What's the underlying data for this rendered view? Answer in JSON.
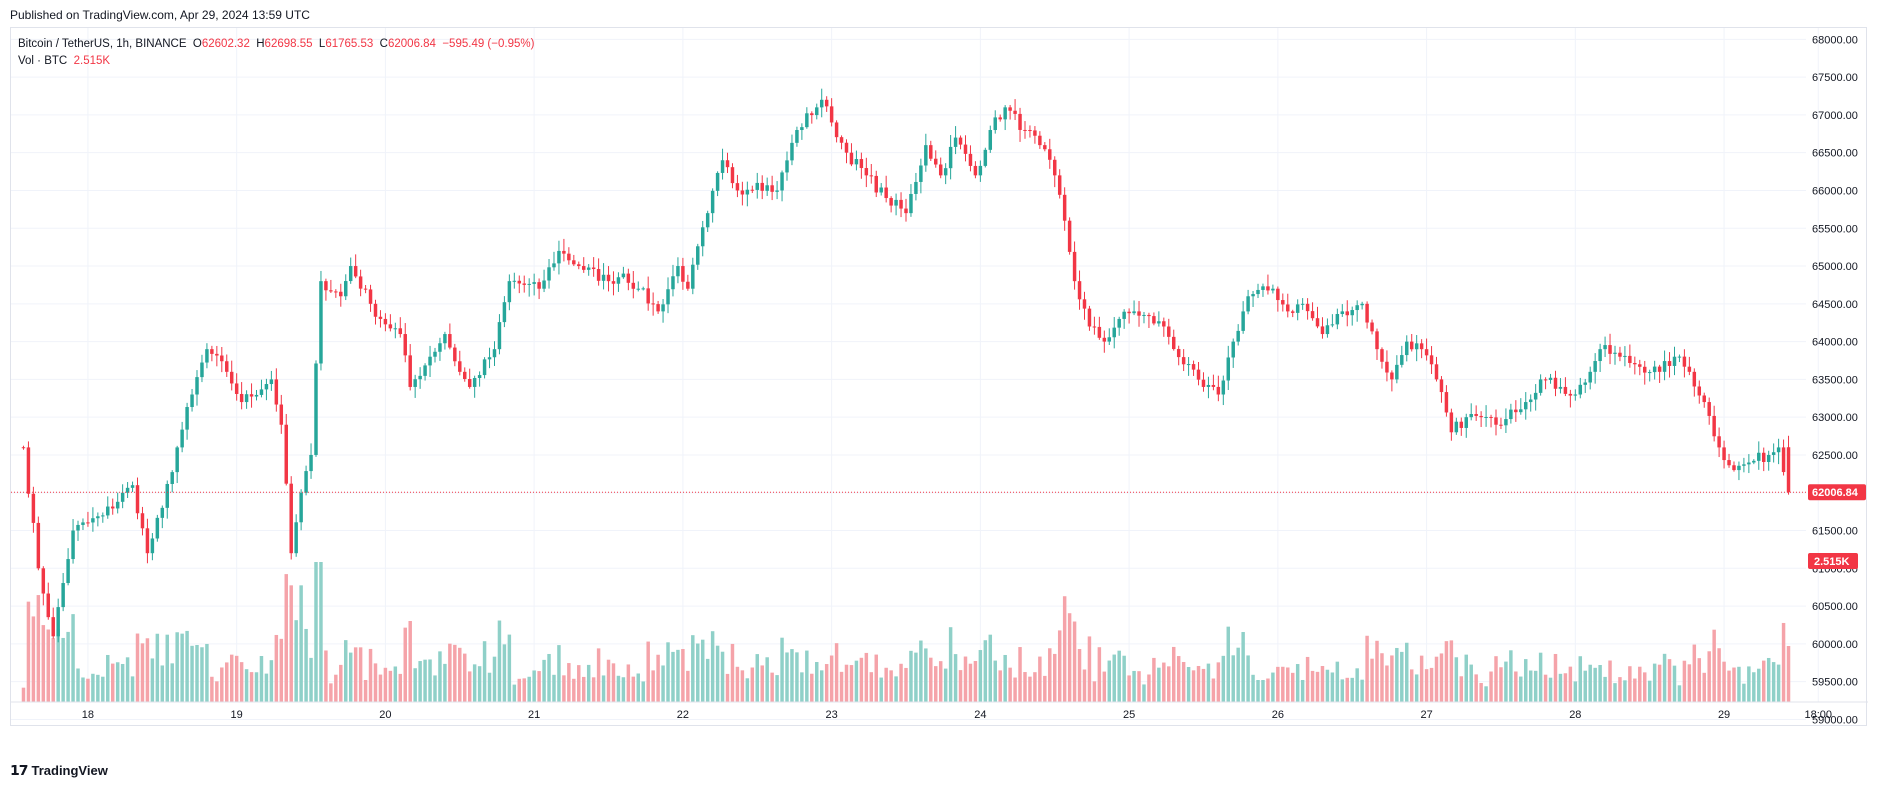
{
  "published": "Published on TradingView.com, Apr 29, 2024 13:59 UTC",
  "legend": {
    "symbol": "Bitcoin / TetherUS, 1h, BINANCE",
    "o_label": "O",
    "o": "62602.32",
    "h_label": "H",
    "h": "62698.55",
    "l_label": "L",
    "l": "61765.53",
    "c_label": "C",
    "c": "62006.84",
    "change": "−595.49 (−0.95%)",
    "vol_label": "Vol · BTC",
    "vol": "2.515K"
  },
  "footer": {
    "brand": "TradingView"
  },
  "colors": {
    "up": "#26a69a",
    "down": "#f23645",
    "vol_up": "#8fd0c8",
    "vol_down": "#f5a3a9",
    "grid": "#f0f3fa"
  },
  "chart_data": {
    "type": "candlestick",
    "title": "Bitcoin / TetherUS, 1h, BINANCE",
    "x_ticks": [
      "18",
      "19",
      "20",
      "21",
      "22",
      "23",
      "24",
      "25",
      "26",
      "27",
      "28",
      "29",
      "18:00"
    ],
    "y_ticks": [
      "68000.00",
      "67500.00",
      "67000.00",
      "66500.00",
      "66000.00",
      "65500.00",
      "65000.00",
      "64500.00",
      "64000.00",
      "63500.00",
      "63000.00",
      "62500.00",
      "62000.00",
      "61500.00",
      "61000.00",
      "60500.00",
      "60000.00",
      "59500.00",
      "59000.00"
    ],
    "ylim": [
      58900,
      68150
    ],
    "last_price": "62006.84",
    "last_volume": "2.515K",
    "anchors": [
      [
        0,
        62600
      ],
      [
        3,
        61000
      ],
      [
        6,
        60100
      ],
      [
        10,
        61500
      ],
      [
        16,
        61700
      ],
      [
        22,
        62100
      ],
      [
        25,
        61200
      ],
      [
        28,
        61800
      ],
      [
        31,
        62600
      ],
      [
        34,
        63300
      ],
      [
        37,
        63900
      ],
      [
        41,
        63600
      ],
      [
        44,
        63200
      ],
      [
        50,
        63500
      ],
      [
        52,
        62900
      ],
      [
        54,
        61200
      ],
      [
        56,
        62000
      ],
      [
        58,
        62500
      ],
      [
        60,
        64800
      ],
      [
        64,
        64600
      ],
      [
        66,
        65000
      ],
      [
        70,
        64500
      ],
      [
        72,
        64300
      ],
      [
        76,
        64100
      ],
      [
        78,
        63400
      ],
      [
        82,
        63800
      ],
      [
        85,
        64100
      ],
      [
        88,
        63600
      ],
      [
        90,
        63400
      ],
      [
        95,
        63900
      ],
      [
        98,
        64800
      ],
      [
        104,
        64700
      ],
      [
        108,
        65200
      ],
      [
        112,
        65000
      ],
      [
        118,
        64800
      ],
      [
        121,
        64900
      ],
      [
        124,
        64700
      ],
      [
        128,
        64400
      ],
      [
        132,
        65000
      ],
      [
        134,
        64700
      ],
      [
        138,
        65700
      ],
      [
        141,
        66400
      ],
      [
        144,
        66000
      ],
      [
        148,
        66100
      ],
      [
        152,
        66000
      ],
      [
        156,
        66800
      ],
      [
        161,
        67200
      ],
      [
        163,
        66900
      ],
      [
        166,
        66500
      ],
      [
        170,
        66200
      ],
      [
        174,
        65900
      ],
      [
        178,
        65700
      ],
      [
        182,
        66600
      ],
      [
        185,
        66200
      ],
      [
        188,
        66700
      ],
      [
        192,
        66200
      ],
      [
        195,
        66800
      ],
      [
        198,
        67100
      ],
      [
        202,
        66800
      ],
      [
        205,
        66600
      ],
      [
        208,
        66200
      ],
      [
        210,
        65600
      ],
      [
        212,
        64800
      ],
      [
        215,
        64200
      ],
      [
        218,
        64000
      ],
      [
        221,
        64300
      ],
      [
        224,
        64400
      ],
      [
        230,
        64200
      ],
      [
        234,
        63700
      ],
      [
        238,
        63400
      ],
      [
        241,
        63300
      ],
      [
        244,
        64000
      ],
      [
        247,
        64600
      ],
      [
        252,
        64700
      ],
      [
        255,
        64400
      ],
      [
        258,
        64500
      ],
      [
        262,
        64100
      ],
      [
        266,
        64400
      ],
      [
        270,
        64500
      ],
      [
        273,
        63900
      ],
      [
        276,
        63500
      ],
      [
        279,
        64000
      ],
      [
        282,
        63900
      ],
      [
        285,
        63500
      ],
      [
        288,
        62800
      ],
      [
        291,
        63000
      ],
      [
        294,
        63000
      ],
      [
        297,
        62900
      ],
      [
        300,
        63100
      ],
      [
        303,
        63200
      ],
      [
        306,
        63500
      ],
      [
        310,
        63400
      ],
      [
        313,
        63300
      ],
      [
        316,
        63600
      ],
      [
        318,
        63900
      ],
      [
        322,
        63800
      ],
      [
        325,
        63700
      ],
      [
        330,
        63600
      ],
      [
        333,
        63800
      ],
      [
        336,
        63600
      ],
      [
        339,
        63200
      ],
      [
        342,
        62600
      ],
      [
        345,
        62300
      ],
      [
        348,
        62400
      ],
      [
        352,
        62500
      ],
      [
        354,
        62600
      ],
      [
        356,
        62006.84
      ]
    ],
    "volume_ylim": [
      0,
      9000
    ]
  }
}
